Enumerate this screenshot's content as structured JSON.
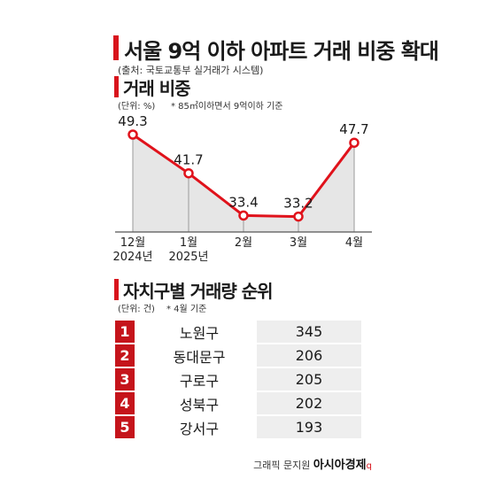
{
  "title": "서울 9억 이하 아파트 거래 비중 확대",
  "source": "(출처: 국토교통부 실거래가 시스템)",
  "section1": {
    "title": "거래 비중",
    "unit": "(단위: %)",
    "note": "* 85㎡이하면서 9억이하 기준"
  },
  "section2": {
    "title": "자치구별 거래량 순위",
    "unit": "(단위: 건)",
    "note": "* 4월 기준"
  },
  "colors": {
    "accent": "#d8141c",
    "line": "#e0121b",
    "area": "#e6e6e6"
  },
  "chart_data": [
    {
      "type": "line",
      "categories": [
        "12월|2024년",
        "1월|2025년",
        "2월",
        "3월",
        "4월"
      ],
      "values": [
        49.3,
        41.7,
        33.4,
        33.2,
        47.7
      ],
      "labels": [
        "49.3",
        "41.7",
        "33.4",
        "33.2",
        "47.7"
      ],
      "title": "거래 비중",
      "ylabel": "(단위: %)",
      "ylim": [
        24,
        54
      ],
      "grid": false,
      "legend": "none"
    },
    {
      "type": "table",
      "title": "자치구별 거래량 순위",
      "rows": [
        {
          "rank": "1",
          "district": "노원구",
          "value": "345"
        },
        {
          "rank": "2",
          "district": "동대문구",
          "value": "206"
        },
        {
          "rank": "3",
          "district": "구로구",
          "value": "205"
        },
        {
          "rank": "4",
          "district": "성북구",
          "value": "202"
        },
        {
          "rank": "5",
          "district": "강서구",
          "value": "193"
        }
      ]
    }
  ],
  "footer": {
    "credit": "그래픽 문지원",
    "brand": "아시아경제",
    "brand_mark": "q"
  }
}
